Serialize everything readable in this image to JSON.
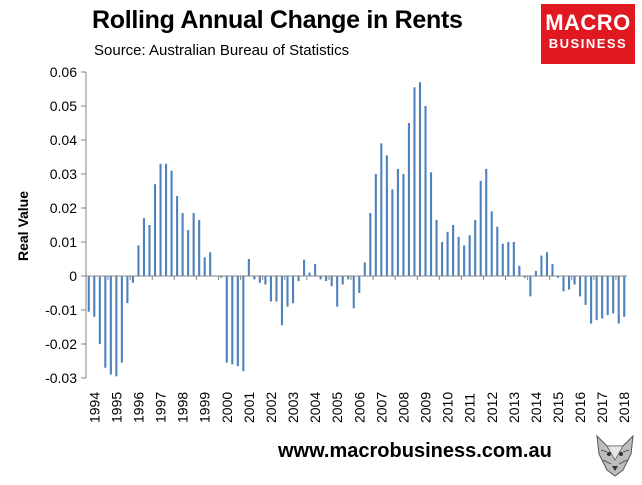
{
  "header": {
    "title": "Rolling Annual Change in Rents",
    "source": "Source: Australian Bureau of Statistics"
  },
  "logo": {
    "line1": "MACRO",
    "line2": "BUSINESS"
  },
  "footer": {
    "website": "www.macrobusiness.com.au"
  },
  "colors": {
    "bar": "#4f81bd",
    "axis": "#868686",
    "logo_bg": "#e0181f"
  },
  "icons": {
    "footer_image": "fox-icon"
  },
  "chart_data": {
    "type": "bar",
    "title": "Rolling Annual Change in Rents",
    "xlabel": "",
    "ylabel": "Real Value",
    "ylim": [
      -0.03,
      0.06
    ],
    "yticks": [
      "0.06",
      "0.05",
      "0.04",
      "0.03",
      "0.02",
      "0.01",
      "0",
      "-0.01",
      "-0.02",
      "-0.03"
    ],
    "ytick_values": [
      0.06,
      0.05,
      0.04,
      0.03,
      0.02,
      0.01,
      0,
      -0.01,
      -0.02,
      -0.03
    ],
    "xticks": [
      "1994",
      "1995",
      "1996",
      "1997",
      "1998",
      "1999",
      "2000",
      "2001",
      "2002",
      "2003",
      "2004",
      "2005",
      "2006",
      "2007",
      "2008",
      "2009",
      "2010",
      "2011",
      "2012",
      "2013",
      "2014",
      "2015",
      "2016",
      "2017",
      "2018"
    ],
    "series": [
      {
        "name": "Rolling Annual Change in Rents",
        "frequency": "quarterly",
        "start": "1994 Q1",
        "values": [
          -0.0105,
          -0.012,
          -0.02,
          -0.027,
          -0.029,
          -0.0295,
          -0.0255,
          -0.008,
          -0.002,
          0.009,
          0.017,
          0.015,
          0.027,
          0.033,
          0.033,
          0.031,
          0.0235,
          0.0185,
          0.0135,
          0.0185,
          0.0165,
          0.0055,
          0.007,
          0.0,
          -0.0005,
          -0.0255,
          -0.026,
          -0.0265,
          -0.028,
          0.005,
          -0.001,
          -0.002,
          -0.0025,
          -0.0075,
          -0.0075,
          -0.0145,
          -0.009,
          -0.008,
          -0.0015,
          0.0048,
          0.001,
          0.0035,
          -0.001,
          -0.0015,
          -0.003,
          -0.009,
          -0.0025,
          -0.001,
          -0.0095,
          -0.005,
          0.004,
          0.0185,
          0.03,
          0.039,
          0.0355,
          0.0255,
          0.0315,
          0.03,
          0.045,
          0.0555,
          0.057,
          0.05,
          0.0305,
          0.0165,
          0.01,
          0.013,
          0.015,
          0.0115,
          0.009,
          0.012,
          0.0165,
          0.028,
          0.0315,
          0.019,
          0.0145,
          0.0095,
          0.01,
          0.01,
          0.003,
          -0.0005,
          -0.006,
          0.0015,
          0.006,
          0.007,
          0.0035,
          -0.0005,
          -0.0045,
          -0.004,
          -0.0025,
          -0.006,
          -0.0085,
          -0.014,
          -0.013,
          -0.0125,
          -0.0115,
          -0.011,
          -0.014,
          -0.012
        ]
      }
    ],
    "grid": false,
    "legend": "none"
  }
}
